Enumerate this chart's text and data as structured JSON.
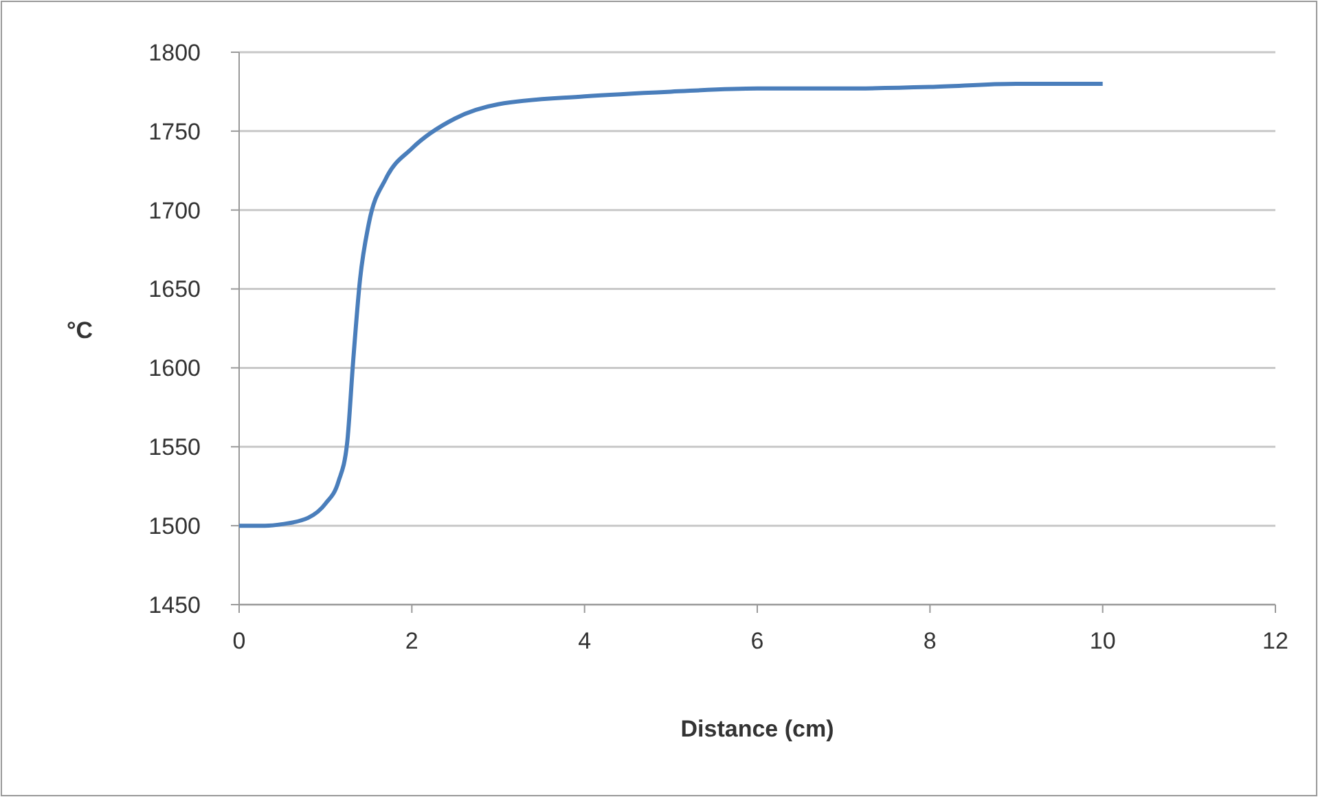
{
  "chart_data": {
    "type": "line",
    "xlabel": "Distance (cm)",
    "ylabel": "°C",
    "xlim": [
      0,
      12
    ],
    "xticks": [
      0,
      2,
      4,
      6,
      8,
      10,
      12
    ],
    "ylim": [
      1450,
      1800
    ],
    "yticks": [
      1450,
      1500,
      1550,
      1600,
      1650,
      1700,
      1750,
      1800
    ],
    "grid": "y",
    "marker": "none",
    "line_style": "solid",
    "series": [
      {
        "color": "#4a7ebb",
        "x": [
          0,
          0.3,
          0.5,
          0.8,
          1.0,
          1.15,
          1.25,
          1.32,
          1.4,
          1.5,
          1.7,
          2.0,
          2.5,
          3,
          4,
          5,
          6,
          7,
          8,
          9,
          10
        ],
        "values": [
          1500,
          1500,
          1501,
          1505,
          1514,
          1528,
          1552,
          1604,
          1656,
          1691,
          1720,
          1739,
          1758,
          1767,
          1772,
          1775,
          1777,
          1777,
          1778,
          1780,
          1780
        ]
      }
    ]
  }
}
